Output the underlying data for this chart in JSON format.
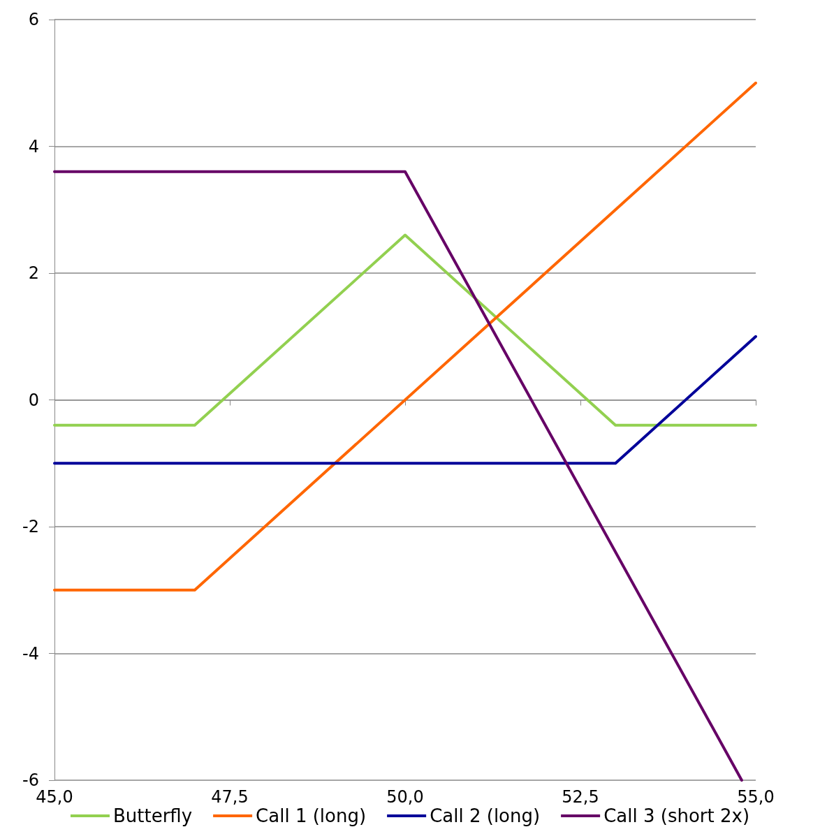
{
  "chart_data": {
    "type": "line",
    "xlim": [
      45,
      55
    ],
    "xticks": [
      {
        "value": 45,
        "label": "45,0"
      },
      {
        "value": 47.5,
        "label": "47,5"
      },
      {
        "value": 50,
        "label": "50,0"
      },
      {
        "value": 52.5,
        "label": "52,5"
      },
      {
        "value": 55,
        "label": "55,0"
      }
    ],
    "ylim": [
      -6,
      6
    ],
    "yticks": [
      -6,
      -4,
      -2,
      0,
      2,
      4,
      6
    ],
    "grid": "y",
    "legend": "bottom",
    "marker": "none",
    "line_style": "solid",
    "series": [
      {
        "name": "Butterfly",
        "color": "#92d050",
        "x": [
          45,
          47,
          50,
          53,
          55
        ],
        "values": [
          -0.4,
          -0.4,
          2.6,
          -0.4,
          -0.4
        ]
      },
      {
        "name": "Call 1 (long)",
        "color": "#ff6600",
        "x": [
          45,
          47,
          55
        ],
        "values": [
          -3,
          -3,
          5
        ]
      },
      {
        "name": "Call 2 (long)",
        "color": "#000099",
        "x": [
          45,
          53,
          55
        ],
        "values": [
          -1,
          -1,
          1
        ]
      },
      {
        "name": "Call 3 (short 2x)",
        "color": "#660066",
        "x": [
          45,
          50,
          54.8
        ],
        "values": [
          3.6,
          3.6,
          -6
        ]
      }
    ]
  }
}
